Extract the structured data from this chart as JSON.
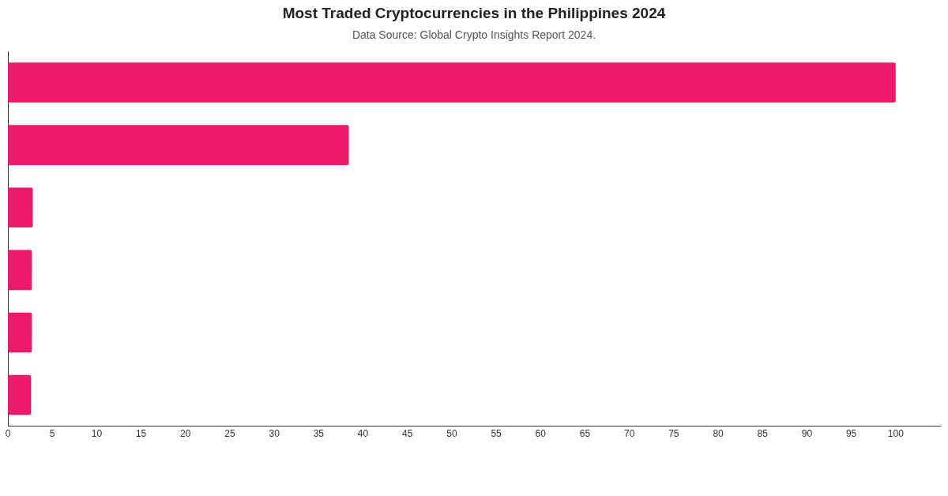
{
  "chart_data": {
    "type": "bar",
    "orientation": "horizontal",
    "title": "Most Traded Cryptocurrencies in the Philippines 2024",
    "subtitle": "Data Source: Global Crypto Insights Report 2024.",
    "categories": [
      null,
      null,
      null,
      null,
      null,
      null
    ],
    "values": [
      100,
      38.4,
      2.8,
      2.7,
      2.7,
      2.6
    ],
    "color": "#f0186a",
    "xlim": [
      0,
      105
    ],
    "xticks": [
      0,
      5,
      10,
      15,
      20,
      25,
      30,
      35,
      40,
      45,
      50,
      55,
      60,
      65,
      70,
      75,
      80,
      85,
      90,
      95,
      100
    ],
    "grid": false,
    "legend": false
  }
}
